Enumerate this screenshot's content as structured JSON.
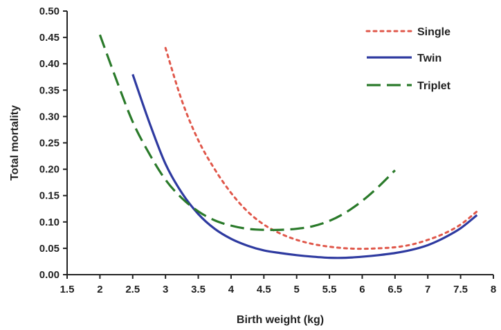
{
  "chart_data": {
    "type": "line",
    "title": "",
    "xlabel": "Birth weight (kg)",
    "ylabel": "Total mortality",
    "xlim": [
      1.5,
      8
    ],
    "ylim": [
      0,
      0.5
    ],
    "xticks": [
      "1.5",
      "2",
      "2.5",
      "3",
      "3.5",
      "4",
      "4.5",
      "5",
      "5.5",
      "6",
      "6.5",
      "7",
      "7.5",
      "8"
    ],
    "yticks": [
      "0.00",
      "0.05",
      "0.10",
      "0.15",
      "0.20",
      "0.25",
      "0.30",
      "0.35",
      "0.40",
      "0.45",
      "0.50"
    ],
    "legend_position": "top-right",
    "grid": false,
    "series": [
      {
        "name": "Single",
        "color": "#e0574a",
        "style": "dotted",
        "x": [
          3.0,
          3.25,
          3.5,
          3.75,
          4.0,
          4.25,
          4.5,
          4.75,
          5.0,
          5.25,
          5.5,
          5.75,
          6.0,
          6.25,
          6.5,
          6.75,
          7.0,
          7.25,
          7.5,
          7.75
        ],
        "y": [
          0.43,
          0.33,
          0.255,
          0.2,
          0.155,
          0.12,
          0.095,
          0.078,
          0.066,
          0.058,
          0.053,
          0.05,
          0.049,
          0.05,
          0.052,
          0.057,
          0.066,
          0.078,
          0.095,
          0.12
        ]
      },
      {
        "name": "Twin",
        "color": "#2e3aa0",
        "style": "solid",
        "x": [
          2.5,
          2.75,
          3.0,
          3.25,
          3.5,
          3.75,
          4.0,
          4.25,
          4.5,
          4.75,
          5.0,
          5.25,
          5.5,
          5.75,
          6.0,
          6.25,
          6.5,
          6.75,
          7.0,
          7.25,
          7.5,
          7.75
        ],
        "y": [
          0.38,
          0.29,
          0.21,
          0.155,
          0.115,
          0.087,
          0.068,
          0.055,
          0.046,
          0.041,
          0.037,
          0.034,
          0.032,
          0.032,
          0.034,
          0.037,
          0.041,
          0.047,
          0.056,
          0.07,
          0.088,
          0.113
        ]
      },
      {
        "name": "Triplet",
        "color": "#2a7a2a",
        "style": "dashed",
        "x": [
          2.0,
          2.25,
          2.5,
          2.75,
          3.0,
          3.25,
          3.5,
          3.75,
          4.0,
          4.25,
          4.5,
          4.75,
          5.0,
          5.25,
          5.5,
          5.75,
          6.0,
          6.25,
          6.5
        ],
        "y": [
          0.455,
          0.37,
          0.29,
          0.23,
          0.18,
          0.145,
          0.12,
          0.103,
          0.093,
          0.087,
          0.085,
          0.085,
          0.087,
          0.092,
          0.102,
          0.118,
          0.14,
          0.167,
          0.198
        ]
      }
    ]
  }
}
